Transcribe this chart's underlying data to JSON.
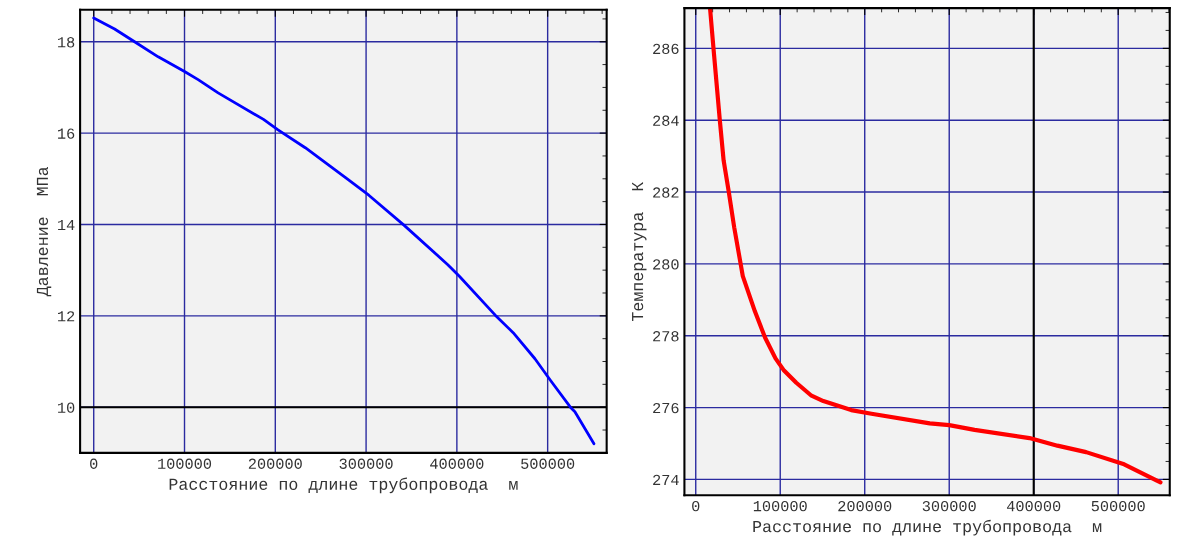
{
  "chart_data": [
    {
      "type": "line",
      "xlabel": "Расстояние по длине трубопровода  м",
      "ylabel": "Давление  МПа",
      "grid": true,
      "legend": false,
      "xlim": [
        -15000,
        565000
      ],
      "ylim": [
        9.0,
        18.7
      ],
      "xticks": [
        0,
        100000,
        200000,
        300000,
        400000,
        500000
      ],
      "yticks": [
        10,
        12,
        14,
        16,
        18
      ],
      "x": [
        0,
        23000,
        45000,
        71000,
        100000,
        115000,
        137000,
        187000,
        203000,
        233000,
        277000,
        303000,
        342000,
        390000,
        403000,
        442000,
        462000,
        486000,
        503000,
        525000,
        530000,
        551000
      ],
      "series": [
        {
          "color": "#0000ff",
          "values": [
            18.52,
            18.28,
            18.0,
            17.67,
            17.35,
            17.17,
            16.88,
            16.3,
            16.07,
            15.68,
            15.03,
            14.64,
            13.98,
            13.12,
            12.86,
            12.02,
            11.63,
            11.06,
            10.59,
            10.0,
            9.9,
            9.2
          ]
        }
      ],
      "ref_lines": [
        {
          "axis": "y",
          "value": 10,
          "color": "#000000"
        }
      ]
    },
    {
      "type": "line",
      "xlabel": "Расстояние по длине трубопровода  м",
      "ylabel": "Температура  К",
      "grid": true,
      "legend": false,
      "xlim": [
        -13400,
        561000
      ],
      "ylim": [
        273.56,
        287.12
      ],
      "xticks": [
        0,
        100000,
        200000,
        300000,
        400000,
        500000
      ],
      "yticks": [
        274,
        276,
        278,
        280,
        282,
        284,
        286
      ],
      "x": [
        17000,
        21000,
        28500,
        33000,
        39000,
        45500,
        55700,
        70000,
        82000,
        94400,
        104500,
        119000,
        137000,
        151000,
        184000,
        208000,
        277000,
        300000,
        330000,
        395000,
        428000,
        462000,
        507000,
        550000
      ],
      "series": [
        {
          "color": "#ff0000",
          "values": [
            287.1,
            286.0,
            284.0,
            282.88,
            282.02,
            281.02,
            279.66,
            278.68,
            277.95,
            277.37,
            277.03,
            276.69,
            276.33,
            276.18,
            275.93,
            275.83,
            275.56,
            275.51,
            275.38,
            275.15,
            274.94,
            274.76,
            274.42,
            273.92
          ]
        }
      ],
      "ref_lines": [
        {
          "axis": "x",
          "value": 400000,
          "color": "#000000"
        }
      ]
    }
  ]
}
